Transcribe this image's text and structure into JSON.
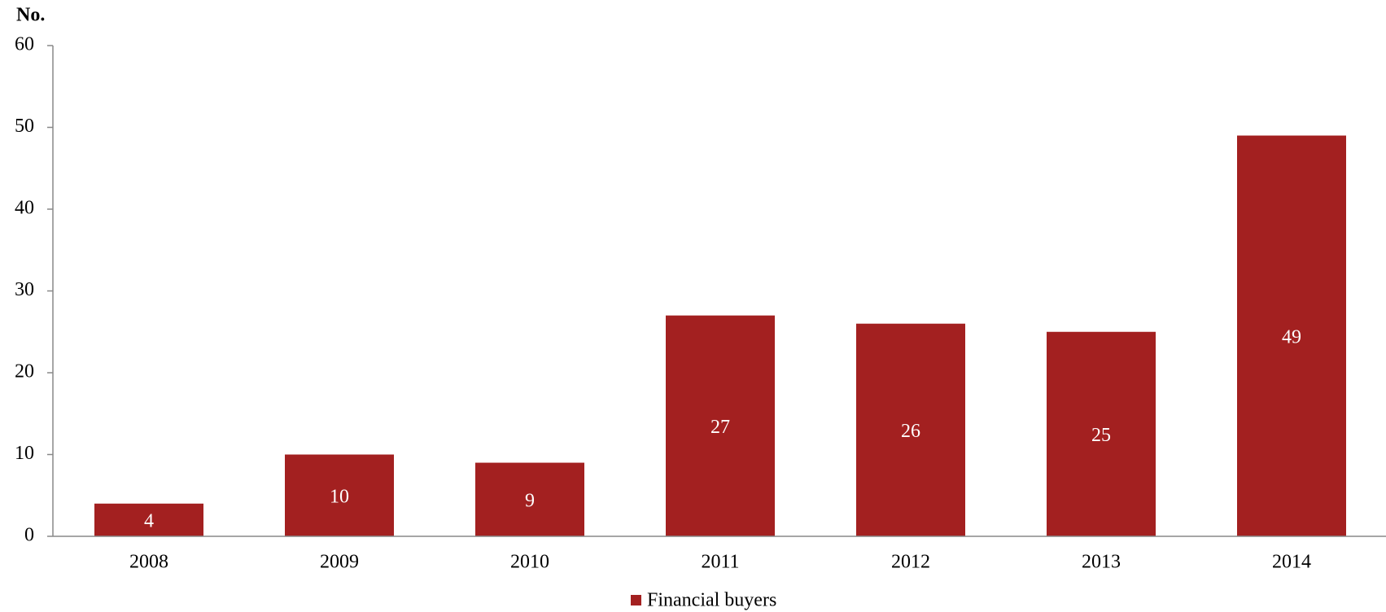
{
  "chart_data": {
    "type": "bar",
    "y_axis_label": "No.",
    "categories": [
      "2008",
      "2009",
      "2010",
      "2011",
      "2012",
      "2013",
      "2014"
    ],
    "series": [
      {
        "name": "Financial buyers",
        "color": "#a32020",
        "values": [
          4,
          10,
          9,
          27,
          26,
          25,
          49
        ]
      }
    ],
    "ylim": [
      0,
      60
    ],
    "yticks": [
      0,
      10,
      20,
      30,
      40,
      50,
      60
    ],
    "legend": "bottom"
  }
}
